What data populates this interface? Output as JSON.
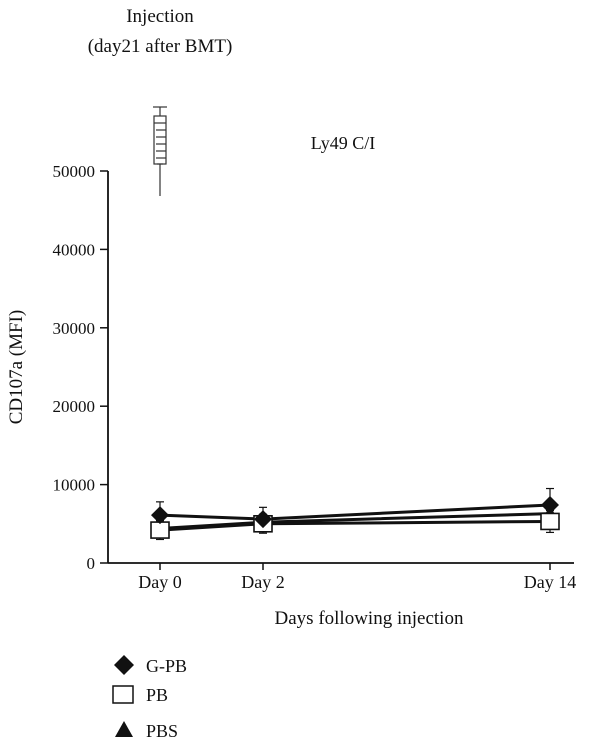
{
  "chart_data": {
    "type": "line",
    "title": "Ly49 C/I",
    "annotation": [
      "Injection",
      "(day21 after BMT)"
    ],
    "xlabel": "Days following injection",
    "ylabel": "CD107a (MFI)",
    "x": [
      0,
      2,
      14
    ],
    "categories": [
      "Day 0",
      "Day 2",
      "Day 14"
    ],
    "ylim": [
      0,
      50000
    ],
    "yticks": [
      0,
      10000,
      20000,
      30000,
      40000,
      50000
    ],
    "ytick_labels": [
      "0",
      "10000",
      "20000",
      "30000",
      "40000",
      "50000"
    ],
    "grid": false,
    "legend_position": "bottom-left",
    "series": [
      {
        "name": "G-PB",
        "marker": "diamond",
        "values": [
          6100,
          5600,
          7400
        ],
        "errors": [
          1700,
          1500,
          2100
        ]
      },
      {
        "name": "PB",
        "marker": "square-open",
        "values": [
          4200,
          5000,
          5300
        ],
        "errors": [
          1200,
          1200,
          1400
        ]
      },
      {
        "name": "PBS",
        "marker": "triangle",
        "values": [
          4400,
          5200,
          6300
        ],
        "errors": [
          1000,
          1000,
          1200
        ]
      }
    ],
    "colors": {
      "line": "#111111",
      "background": "#ffffff"
    },
    "icon": "syringe-icon"
  }
}
